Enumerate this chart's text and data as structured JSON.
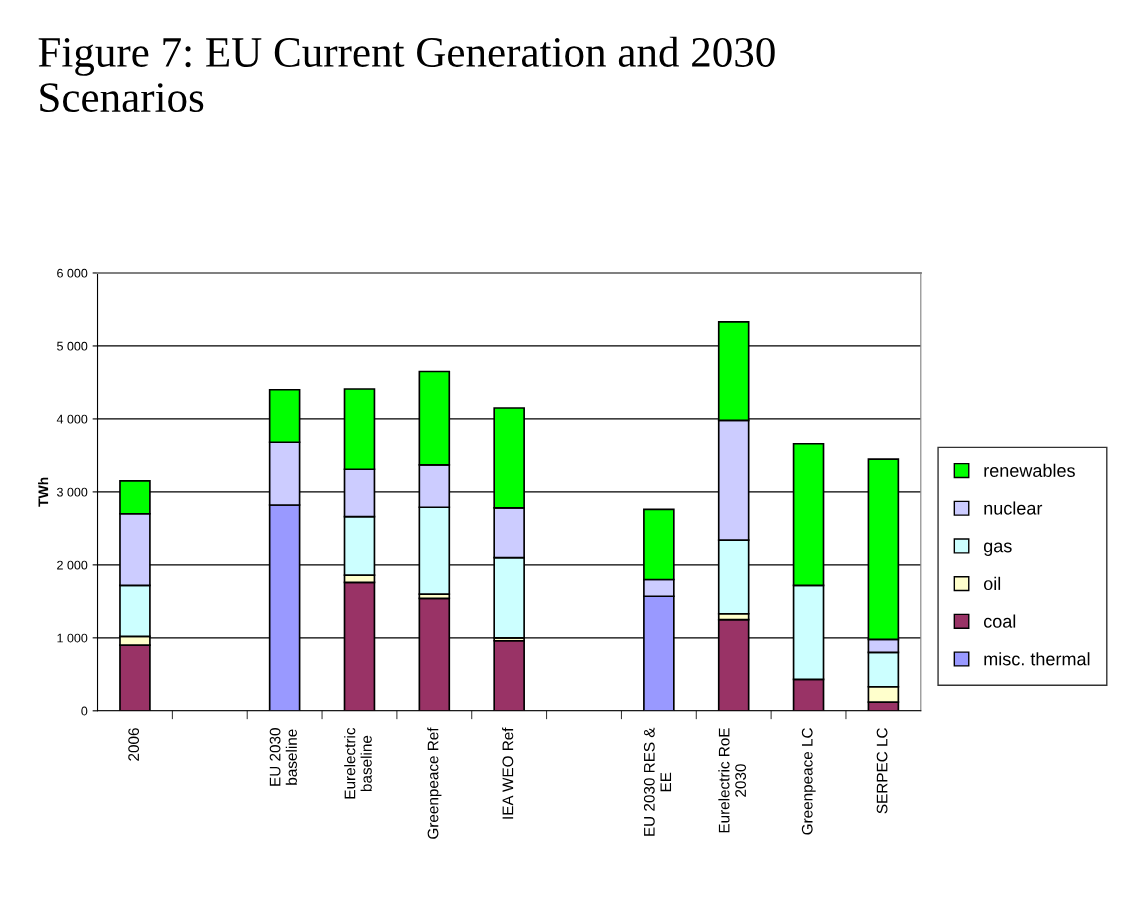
{
  "chart_data": {
    "type": "bar",
    "stacked": true,
    "title": "Figure 7: EU Current Generation and 2030\nScenarios",
    "ylabel": "TWh",
    "categories": [
      "2006",
      null,
      "EU 2030\nbaseline",
      "Eurelectric\nbaseline",
      "Greenpeace Ref",
      "IEA WEO Ref",
      null,
      "EU 2030 RES &\nEE",
      "Eurelectric RoE\n2030",
      "Greenpeace LC",
      "SERPEC LC"
    ],
    "series": [
      {
        "name": "misc. thermal",
        "color": "#9999ff",
        "values": [
          0,
          null,
          2820,
          0,
          0,
          0,
          null,
          1570,
          0,
          0,
          0
        ]
      },
      {
        "name": "coal",
        "color": "#993366",
        "values": [
          900,
          null,
          0,
          1760,
          1540,
          960,
          null,
          0,
          1250,
          430,
          120
        ]
      },
      {
        "name": "oil",
        "color": "#ffffcc",
        "values": [
          120,
          null,
          0,
          100,
          60,
          40,
          null,
          0,
          80,
          0,
          210
        ]
      },
      {
        "name": "gas",
        "color": "#ccffff",
        "values": [
          700,
          null,
          0,
          800,
          1190,
          1100,
          null,
          0,
          1010,
          1290,
          470
        ]
      },
      {
        "name": "nuclear",
        "color": "#ccccff",
        "values": [
          980,
          null,
          860,
          650,
          580,
          680,
          null,
          230,
          1640,
          0,
          180
        ]
      },
      {
        "name": "renewables",
        "color": "#00ff00",
        "values": [
          450,
          null,
          720,
          1100,
          1280,
          1370,
          null,
          960,
          1350,
          1940,
          2470
        ]
      }
    ],
    "ylim": [
      0,
      6000
    ],
    "yticks": [
      {
        "value": 0,
        "label": "0"
      },
      {
        "value": 1000,
        "label": "1 000"
      },
      {
        "value": 2000,
        "label": "2 000"
      },
      {
        "value": 3000,
        "label": "3 000"
      },
      {
        "value": 4000,
        "label": "4 000"
      },
      {
        "value": 5000,
        "label": "5 000"
      },
      {
        "value": 6000,
        "label": "6 000"
      }
    ],
    "grid": "y",
    "legend": "right"
  }
}
